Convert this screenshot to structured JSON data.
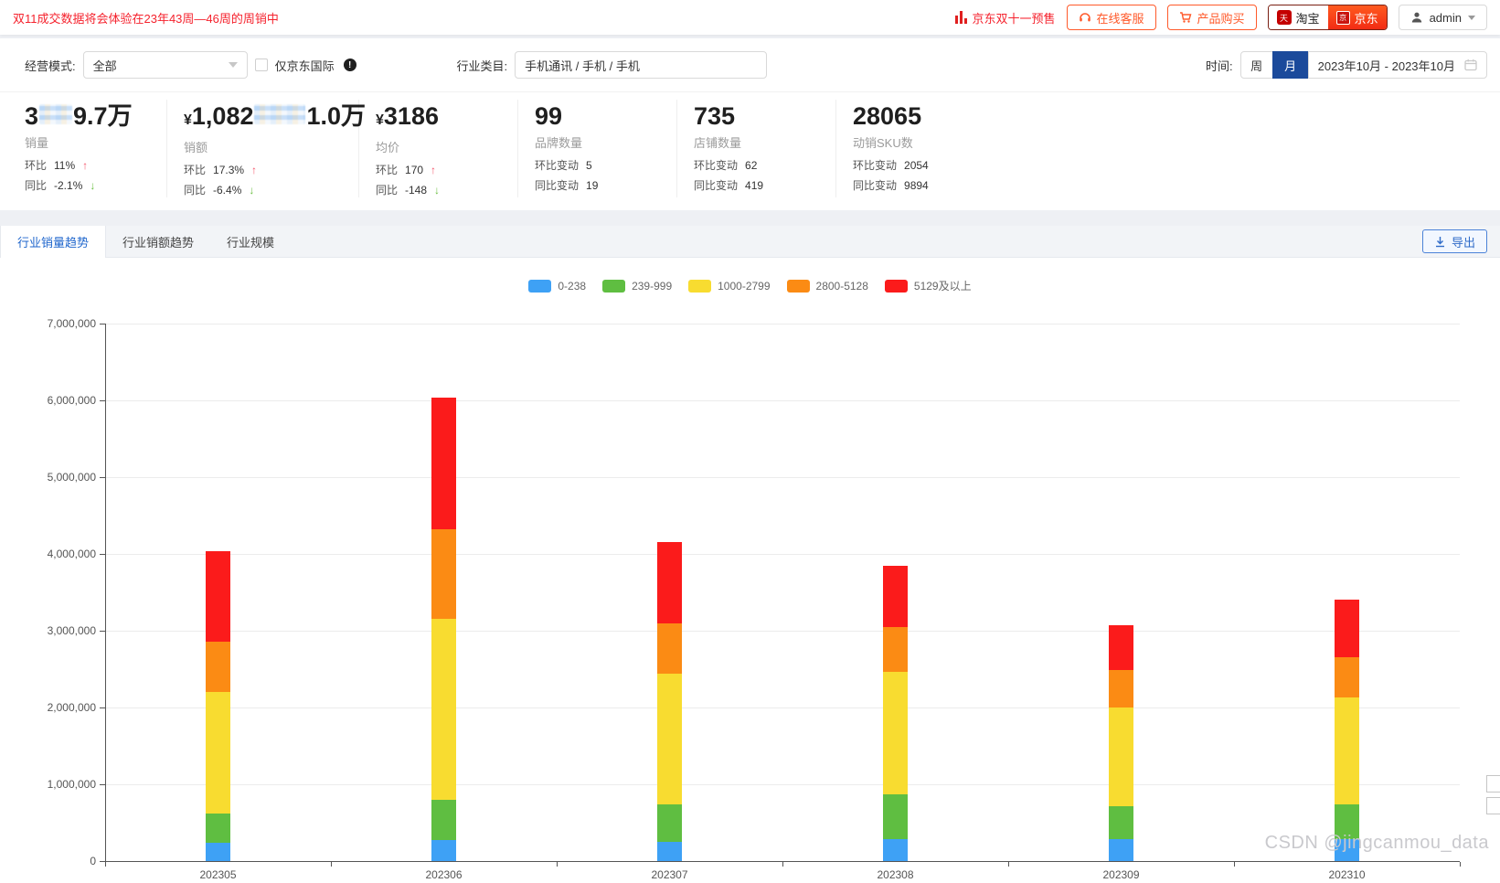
{
  "topbar": {
    "notice": "双11成交数据将会体验在23年43周—46周的周销中",
    "presale_label": "京东双十一预售",
    "service_label": "在线客服",
    "purchase_label": "产品购买",
    "taobao_label": "淘宝",
    "jd_label": "京东",
    "user": "admin"
  },
  "filters": {
    "mode_label": "经营模式:",
    "mode_value": "全部",
    "intl_checkbox_label": "仅京东国际",
    "category_label": "行业类目:",
    "category_value": "手机通讯 / 手机 / 手机",
    "time_label": "时间:",
    "week_label": "周",
    "month_label": "月",
    "date_range": "2023年10月 - 2023年10月"
  },
  "stats": [
    {
      "prefix": "3",
      "censored": true,
      "censor_width": 36,
      "suffix": "9.7万",
      "label": "销量",
      "rows": [
        {
          "k": "环比",
          "v": "11%",
          "arrow": "up"
        },
        {
          "k": "同比",
          "v": "-2.1%",
          "arrow": "down"
        }
      ]
    },
    {
      "currency": "¥",
      "prefix": "1,082",
      "censored": true,
      "censor_width": 56,
      "suffix": "1.0万",
      "label": "销额",
      "rows": [
        {
          "k": "环比",
          "v": "17.3%",
          "arrow": "up"
        },
        {
          "k": "同比",
          "v": "-6.4%",
          "arrow": "down"
        }
      ]
    },
    {
      "currency": "¥",
      "prefix": "3186",
      "label": "均价",
      "rows": [
        {
          "k": "环比",
          "v": "170",
          "arrow": "up"
        },
        {
          "k": "同比",
          "v": "-148",
          "arrow": "down"
        }
      ]
    },
    {
      "prefix": "99",
      "label": "品牌数量",
      "rows": [
        {
          "k": "环比变动",
          "v": "5"
        },
        {
          "k": "同比变动",
          "v": "19"
        }
      ]
    },
    {
      "prefix": "735",
      "label": "店铺数量",
      "rows": [
        {
          "k": "环比变动",
          "v": "62"
        },
        {
          "k": "同比变动",
          "v": "419"
        }
      ]
    },
    {
      "prefix": "28065",
      "label": "动销SKU数",
      "rows": [
        {
          "k": "环比变动",
          "v": "2054"
        },
        {
          "k": "同比变动",
          "v": "9894"
        }
      ]
    }
  ],
  "tabs": [
    {
      "label": "行业销量趋势",
      "active": true
    },
    {
      "label": "行业销额趋势",
      "active": false
    },
    {
      "label": "行业规模",
      "active": false
    }
  ],
  "export_label": "导出",
  "chart_data": {
    "type": "bar",
    "stacked": true,
    "categories": [
      "202305",
      "202306",
      "202307",
      "202308",
      "202309",
      "202310"
    ],
    "series": [
      {
        "name": "0-238",
        "color": "#3ea1f5",
        "values": [
          240000,
          270000,
          250000,
          290000,
          280000,
          280000
        ]
      },
      {
        "name": "239-999",
        "color": "#5fbe41",
        "values": [
          380000,
          530000,
          490000,
          580000,
          440000,
          460000
        ]
      },
      {
        "name": "1000-2799",
        "color": "#f8dc30",
        "values": [
          1580000,
          2360000,
          1700000,
          1600000,
          1280000,
          1390000
        ]
      },
      {
        "name": "2800-5128",
        "color": "#fb8b14",
        "values": [
          660000,
          1160000,
          660000,
          580000,
          490000,
          520000
        ]
      },
      {
        "name": "5129及以上",
        "color": "#fb1b1b",
        "values": [
          1170000,
          1710000,
          1050000,
          800000,
          580000,
          750000
        ]
      }
    ],
    "title": "",
    "xlabel": "",
    "ylabel": "",
    "ylim": [
      0,
      7000000
    ],
    "ytick_step": 1000000,
    "grid": true,
    "legend_position": "top"
  },
  "watermark": "CSDN @jingcanmou_data"
}
